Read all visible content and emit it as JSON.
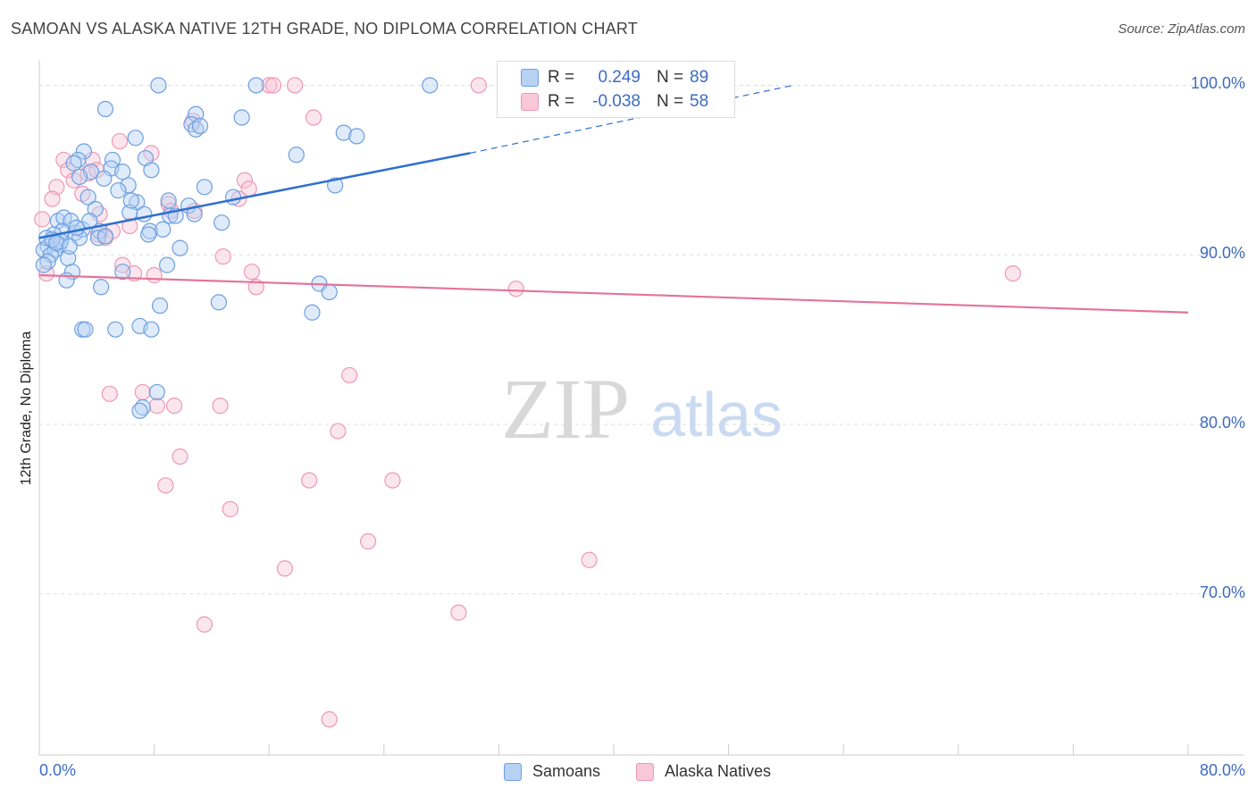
{
  "title": "SAMOAN VS ALASKA NATIVE 12TH GRADE, NO DIPLOMA CORRELATION CHART",
  "source": "Source: ZipAtlas.com",
  "watermark": {
    "zip": "ZIP",
    "atlas": "atlas"
  },
  "colors": {
    "blue_fill": "#b8d2f4",
    "blue_stroke": "#6d9ee0",
    "blue_line": "#2f6fd0",
    "pink_fill": "#f8c8d8",
    "pink_stroke": "#ee98b4",
    "pink_line": "#e4739a",
    "value_text": "#3d6bbf"
  },
  "stats": {
    "samoans": {
      "r_label": "R =",
      "r_value": "0.249",
      "n_label": "N =",
      "n_value": "89"
    },
    "alaska": {
      "r_label": "R =",
      "r_value": "-0.038",
      "n_label": "N =",
      "n_value": "58"
    }
  },
  "legend": {
    "samoans": "Samoans",
    "alaska": "Alaska Natives"
  },
  "chart_data": {
    "type": "scatter",
    "title": "SAMOAN VS ALASKA NATIVE 12TH GRADE, NO DIPLOMA CORRELATION CHART",
    "xlabel": "",
    "ylabel": "12th Grade, No Diploma",
    "xlim": [
      0,
      80
    ],
    "ylim": [
      60.5,
      101.5
    ],
    "x_tick_labels": [
      "0.0%",
      "80.0%"
    ],
    "y_tick_labels": [
      "100.0%",
      "90.0%",
      "80.0%",
      "70.0%"
    ],
    "y_ticks": [
      100,
      90,
      80,
      70
    ],
    "x_minor_ticks": [
      0,
      8,
      16,
      24,
      32,
      40,
      48,
      56,
      64,
      72,
      80
    ],
    "grid": true,
    "legend_position": "bottom-center",
    "series": [
      {
        "name": "Samoans",
        "color": "#6d9ee0",
        "trend": {
          "x": [
            0.0,
            30.0
          ],
          "y": [
            91.0,
            96.0
          ],
          "dashed_to": [
            52.5,
            100.0
          ]
        },
        "points": [
          [
            8.3,
            100.0
          ],
          [
            15.1,
            100.0
          ],
          [
            27.2,
            100.0
          ],
          [
            4.6,
            98.6
          ],
          [
            10.9,
            98.3
          ],
          [
            14.1,
            98.1
          ],
          [
            10.6,
            97.7
          ],
          [
            10.9,
            97.4
          ],
          [
            21.2,
            97.2
          ],
          [
            22.1,
            97.0
          ],
          [
            6.7,
            96.9
          ],
          [
            3.1,
            96.1
          ],
          [
            17.9,
            95.9
          ],
          [
            2.7,
            95.6
          ],
          [
            7.4,
            95.7
          ],
          [
            5.1,
            95.6
          ],
          [
            2.4,
            95.4
          ],
          [
            5.0,
            95.1
          ],
          [
            7.8,
            95.0
          ],
          [
            3.6,
            94.9
          ],
          [
            2.8,
            94.6
          ],
          [
            4.5,
            94.5
          ],
          [
            6.2,
            94.1
          ],
          [
            11.5,
            94.0
          ],
          [
            20.6,
            94.1
          ],
          [
            3.4,
            93.4
          ],
          [
            5.5,
            93.8
          ],
          [
            13.5,
            93.4
          ],
          [
            6.8,
            93.1
          ],
          [
            9.0,
            93.2
          ],
          [
            10.4,
            92.9
          ],
          [
            3.9,
            92.7
          ],
          [
            6.3,
            92.5
          ],
          [
            7.3,
            92.4
          ],
          [
            9.1,
            92.3
          ],
          [
            10.8,
            92.4
          ],
          [
            1.3,
            92.0
          ],
          [
            1.7,
            92.2
          ],
          [
            2.2,
            92.0
          ],
          [
            12.7,
            91.9
          ],
          [
            1.6,
            91.4
          ],
          [
            2.5,
            91.3
          ],
          [
            3.0,
            91.5
          ],
          [
            4.2,
            91.4
          ],
          [
            7.7,
            91.4
          ],
          [
            1.0,
            91.2
          ],
          [
            2.8,
            91.0
          ],
          [
            4.1,
            91.0
          ],
          [
            4.6,
            91.1
          ],
          [
            7.6,
            91.2
          ],
          [
            1.4,
            90.6
          ],
          [
            0.6,
            90.5
          ],
          [
            0.3,
            90.3
          ],
          [
            1.1,
            90.3
          ],
          [
            0.8,
            90.0
          ],
          [
            9.8,
            90.4
          ],
          [
            2.0,
            89.8
          ],
          [
            0.6,
            89.6
          ],
          [
            0.3,
            89.4
          ],
          [
            8.9,
            89.4
          ],
          [
            2.3,
            89.0
          ],
          [
            5.8,
            89.0
          ],
          [
            4.3,
            88.1
          ],
          [
            1.9,
            88.5
          ],
          [
            19.5,
            88.3
          ],
          [
            20.2,
            87.8
          ],
          [
            12.5,
            87.2
          ],
          [
            8.4,
            87.0
          ],
          [
            19.0,
            86.6
          ],
          [
            3.0,
            85.6
          ],
          [
            3.2,
            85.6
          ],
          [
            5.3,
            85.6
          ],
          [
            7.0,
            85.8
          ],
          [
            7.8,
            85.6
          ],
          [
            8.2,
            81.9
          ],
          [
            7.2,
            81.0
          ],
          [
            7.0,
            80.8
          ],
          [
            0.5,
            91.0
          ],
          [
            1.5,
            90.8
          ],
          [
            2.6,
            91.6
          ],
          [
            3.5,
            92.0
          ],
          [
            5.8,
            94.9
          ],
          [
            6.4,
            93.2
          ],
          [
            8.6,
            91.5
          ],
          [
            0.9,
            90.9
          ],
          [
            1.2,
            90.7
          ],
          [
            2.1,
            90.5
          ],
          [
            9.5,
            92.3
          ],
          [
            11.2,
            97.6
          ]
        ]
      },
      {
        "name": "Alaska Natives",
        "color": "#ee98b4",
        "trend": {
          "x": [
            0.0,
            80.0
          ],
          "y": [
            88.8,
            86.6
          ]
        },
        "points": [
          [
            16.0,
            100.0
          ],
          [
            16.3,
            100.0
          ],
          [
            17.8,
            100.0
          ],
          [
            30.6,
            100.0
          ],
          [
            44.0,
            100.0
          ],
          [
            47.5,
            100.0
          ],
          [
            19.1,
            98.1
          ],
          [
            10.7,
            97.9
          ],
          [
            5.6,
            96.7
          ],
          [
            7.8,
            96.0
          ],
          [
            1.7,
            95.6
          ],
          [
            3.7,
            95.6
          ],
          [
            2.0,
            95.0
          ],
          [
            3.4,
            94.8
          ],
          [
            4.0,
            95.0
          ],
          [
            2.4,
            94.4
          ],
          [
            1.2,
            94.0
          ],
          [
            14.3,
            94.4
          ],
          [
            14.6,
            93.9
          ],
          [
            3.0,
            93.6
          ],
          [
            0.9,
            93.3
          ],
          [
            13.9,
            93.3
          ],
          [
            9.0,
            93.0
          ],
          [
            4.2,
            92.4
          ],
          [
            9.2,
            92.6
          ],
          [
            10.8,
            92.6
          ],
          [
            0.2,
            92.1
          ],
          [
            6.3,
            91.7
          ],
          [
            5.1,
            91.4
          ],
          [
            4.1,
            91.2
          ],
          [
            4.6,
            91.0
          ],
          [
            12.8,
            89.9
          ],
          [
            5.8,
            89.4
          ],
          [
            6.6,
            88.9
          ],
          [
            8.0,
            88.8
          ],
          [
            14.8,
            89.0
          ],
          [
            15.1,
            88.1
          ],
          [
            0.5,
            88.9
          ],
          [
            33.2,
            88.0
          ],
          [
            67.8,
            88.9
          ],
          [
            21.6,
            82.9
          ],
          [
            4.9,
            81.8
          ],
          [
            7.2,
            81.9
          ],
          [
            8.2,
            81.1
          ],
          [
            9.4,
            81.1
          ],
          [
            12.6,
            81.1
          ],
          [
            20.8,
            79.6
          ],
          [
            9.8,
            78.1
          ],
          [
            8.8,
            76.4
          ],
          [
            18.8,
            76.7
          ],
          [
            24.6,
            76.7
          ],
          [
            13.3,
            75.0
          ],
          [
            22.9,
            73.1
          ],
          [
            17.1,
            71.5
          ],
          [
            38.3,
            72.0
          ],
          [
            11.5,
            68.2
          ],
          [
            29.2,
            68.9
          ],
          [
            20.2,
            62.6
          ]
        ]
      }
    ]
  }
}
